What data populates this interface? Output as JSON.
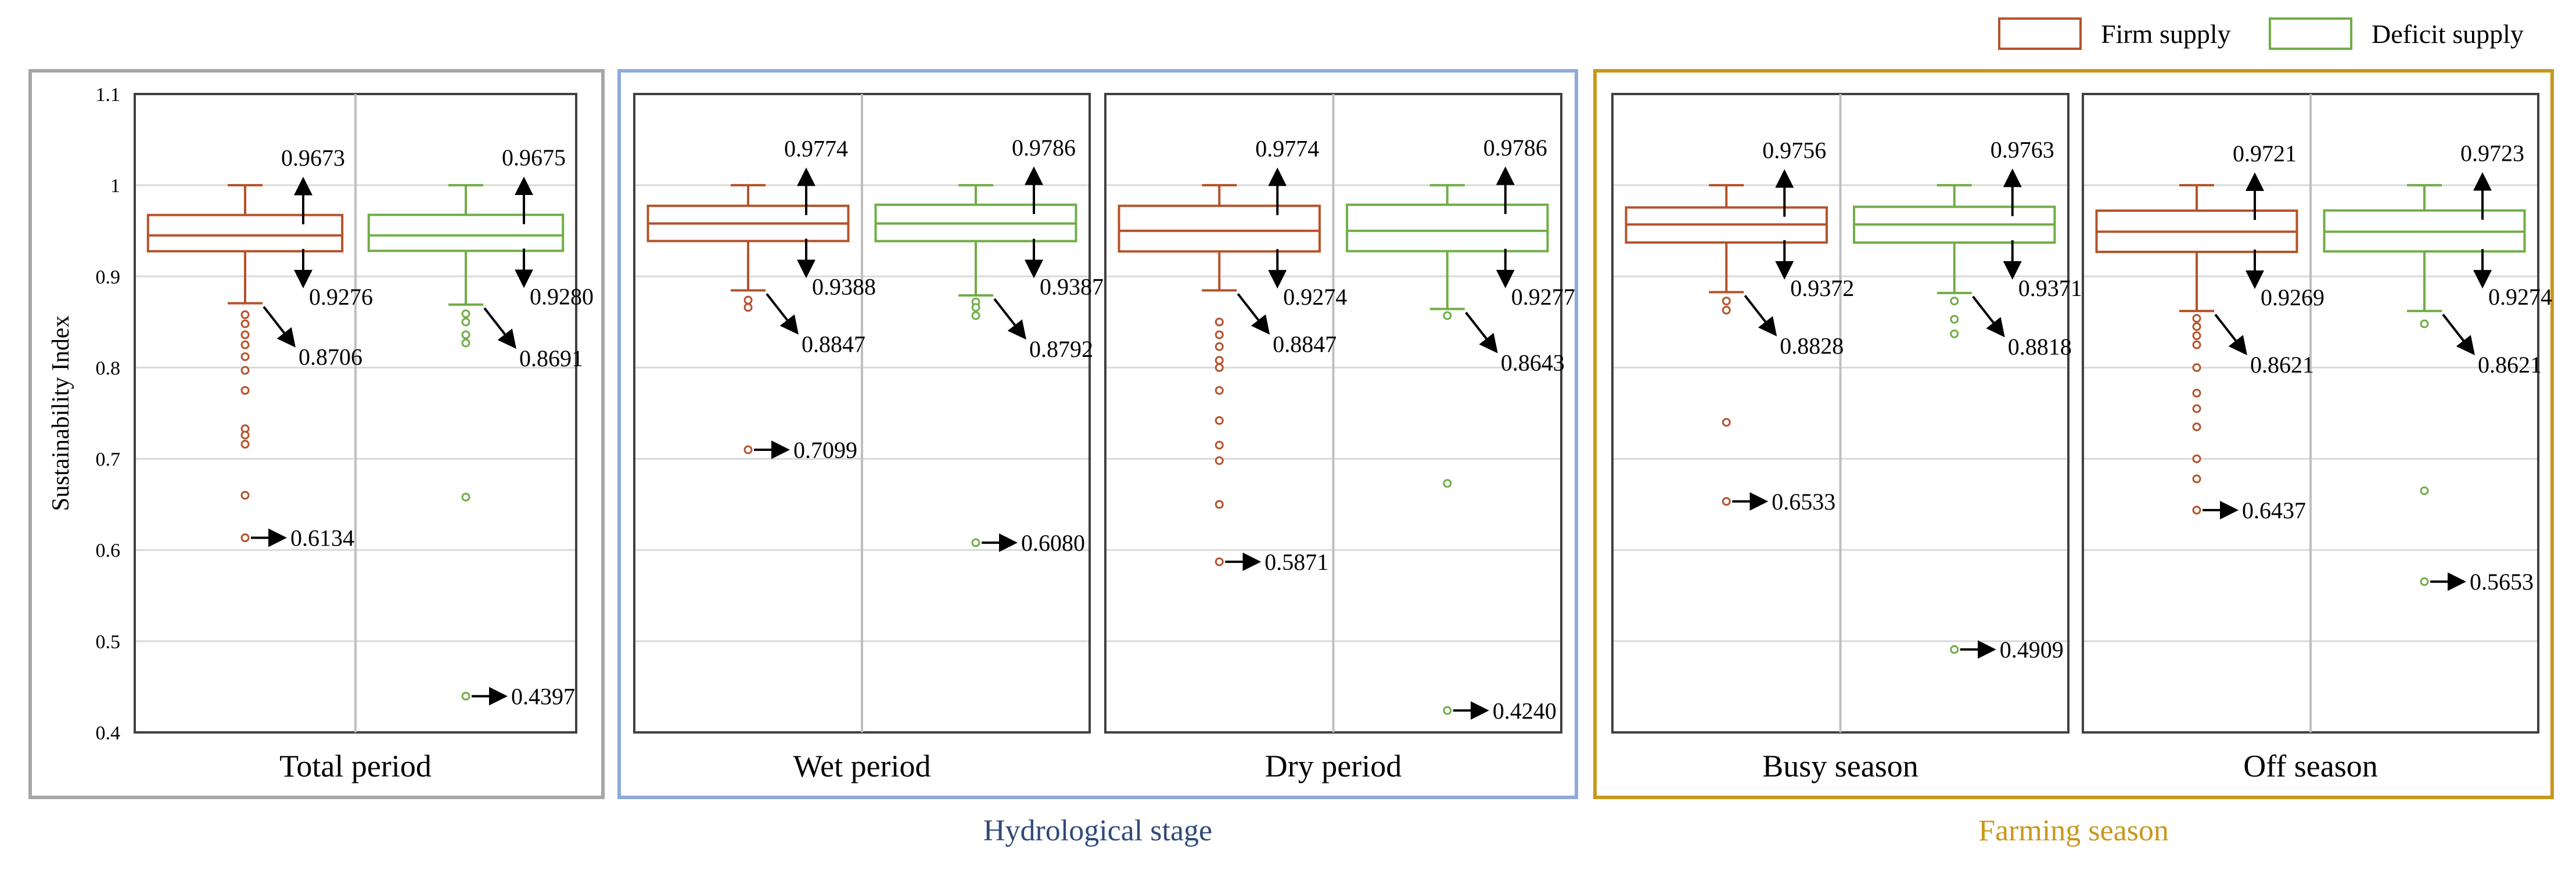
{
  "chart_data": {
    "type": "box",
    "ylabel": "Sustainability Index",
    "ylim": [
      0.4,
      1.1
    ],
    "yticks": [
      "0.4",
      "0.5",
      "0.6",
      "0.7",
      "0.8",
      "0.9",
      "1",
      "1.1"
    ],
    "grid": true,
    "legend": {
      "placement": "top-right",
      "entries": [
        {
          "name": "Firm supply",
          "color": "#b5522a"
        },
        {
          "name": "Deficit supply",
          "color": "#70ad47"
        }
      ]
    },
    "colors": {
      "firm": "#b5522a",
      "deficit": "#70ad47",
      "group_total": "#a6a6a6",
      "group_hydro": "#8eaadb",
      "group_farming": "#c9971a",
      "label_hydro": "#2f4a7a",
      "label_farming": "#c9971a"
    },
    "groups": [
      {
        "label": "",
        "color_key": "group_total",
        "panels": [
          0
        ]
      },
      {
        "label": "Hydrological stage",
        "color_key": "group_hydro",
        "label_color_key": "label_hydro",
        "panels": [
          1,
          2
        ]
      },
      {
        "label": "Farming season",
        "color_key": "group_farming",
        "label_color_key": "label_farming",
        "panels": [
          3,
          4
        ]
      }
    ],
    "panels": [
      {
        "label": "Total period",
        "boxes": [
          {
            "series": "Firm supply",
            "max": 1.0,
            "q3": 0.9673,
            "median": 0.945,
            "q1": 0.9276,
            "whisker_low": 0.8706,
            "mean": 0.95,
            "outliers": [
              0.858,
              0.848,
              0.836,
              0.825,
              0.812,
              0.797,
              0.775,
              0.733,
              0.726,
              0.716,
              0.66,
              0.6134
            ],
            "labels": {
              "q3": "0.9673",
              "q1": "0.9276",
              "low": "0.8706",
              "min": "0.6134"
            }
          },
          {
            "series": "Deficit supply",
            "max": 1.0,
            "q3": 0.9675,
            "median": 0.945,
            "q1": 0.928,
            "whisker_low": 0.8691,
            "mean": 0.95,
            "outliers": [
              0.859,
              0.85,
              0.836,
              0.827,
              0.658,
              0.4397
            ],
            "labels": {
              "q3": "0.9675",
              "q1": "0.9280",
              "low": "0.8691",
              "min": "0.4397"
            }
          }
        ]
      },
      {
        "label": "Wet period",
        "boxes": [
          {
            "series": "Firm supply",
            "max": 1.0,
            "q3": 0.9774,
            "median": 0.958,
            "q1": 0.9388,
            "whisker_low": 0.8847,
            "mean": 0.96,
            "outliers": [
              0.874,
              0.866,
              0.7099
            ],
            "labels": {
              "q3": "0.9774",
              "q1": "0.9388",
              "low": "0.8847",
              "min": "0.7099"
            }
          },
          {
            "series": "Deficit supply",
            "max": 1.0,
            "q3": 0.9786,
            "median": 0.958,
            "q1": 0.9387,
            "whisker_low": 0.8792,
            "mean": 0.96,
            "outliers": [
              0.872,
              0.866,
              0.857,
              0.608
            ],
            "labels": {
              "q3": "0.9786",
              "q1": "0.9387",
              "low": "0.8792",
              "min": "0.6080"
            }
          }
        ]
      },
      {
        "label": "Dry period",
        "boxes": [
          {
            "series": "Firm supply",
            "max": 1.0,
            "q3": 0.9774,
            "median": 0.95,
            "q1": 0.9274,
            "whisker_low": 0.8847,
            "mean": 0.95,
            "outliers": [
              0.85,
              0.836,
              0.823,
              0.808,
              0.8,
              0.775,
              0.742,
              0.715,
              0.698,
              0.65,
              0.5871
            ],
            "labels": {
              "q3": "0.9774",
              "q1": "0.9274",
              "low": "0.8847",
              "min": "0.5871"
            }
          },
          {
            "series": "Deficit supply",
            "max": 1.0,
            "q3": 0.9786,
            "median": 0.95,
            "q1": 0.9277,
            "whisker_low": 0.8643,
            "mean": 0.95,
            "outliers": [
              0.857,
              0.673,
              0.424
            ],
            "labels": {
              "q3": "0.9786",
              "q1": "0.9277",
              "low": "0.8643",
              "min": "0.4240"
            }
          }
        ]
      },
      {
        "label": "Busy season",
        "boxes": [
          {
            "series": "Firm supply",
            "max": 1.0,
            "q3": 0.9756,
            "median": 0.957,
            "q1": 0.9372,
            "whisker_low": 0.8828,
            "mean": 0.957,
            "outliers": [
              0.873,
              0.863,
              0.74,
              0.6533
            ],
            "labels": {
              "q3": "0.9756",
              "q1": "0.9372",
              "low": "0.8828",
              "min": "0.6533"
            }
          },
          {
            "series": "Deficit supply",
            "max": 1.0,
            "q3": 0.9763,
            "median": 0.957,
            "q1": 0.9371,
            "whisker_low": 0.8818,
            "mean": 0.957,
            "outliers": [
              0.873,
              0.853,
              0.837,
              0.4909
            ],
            "labels": {
              "q3": "0.9763",
              "q1": "0.9371",
              "low": "0.8818",
              "min": "0.4909"
            }
          }
        ]
      },
      {
        "label": "Off season",
        "boxes": [
          {
            "series": "Firm supply",
            "max": 1.0,
            "q3": 0.9721,
            "median": 0.949,
            "q1": 0.9269,
            "whisker_low": 0.8621,
            "mean": 0.95,
            "outliers": [
              0.854,
              0.845,
              0.835,
              0.825,
              0.8,
              0.772,
              0.755,
              0.735,
              0.7,
              0.678,
              0.6437
            ],
            "labels": {
              "q3": "0.9721",
              "q1": "0.9269",
              "low": "0.8621",
              "min": "0.6437"
            }
          },
          {
            "series": "Deficit supply",
            "max": 1.0,
            "q3": 0.9723,
            "median": 0.949,
            "q1": 0.9274,
            "whisker_low": 0.8621,
            "mean": 0.95,
            "outliers": [
              0.848,
              0.665,
              0.5653
            ],
            "labels": {
              "q3": "0.9723",
              "q1": "0.9274",
              "low": "0.8621",
              "min": "0.5653"
            }
          }
        ]
      }
    ]
  }
}
